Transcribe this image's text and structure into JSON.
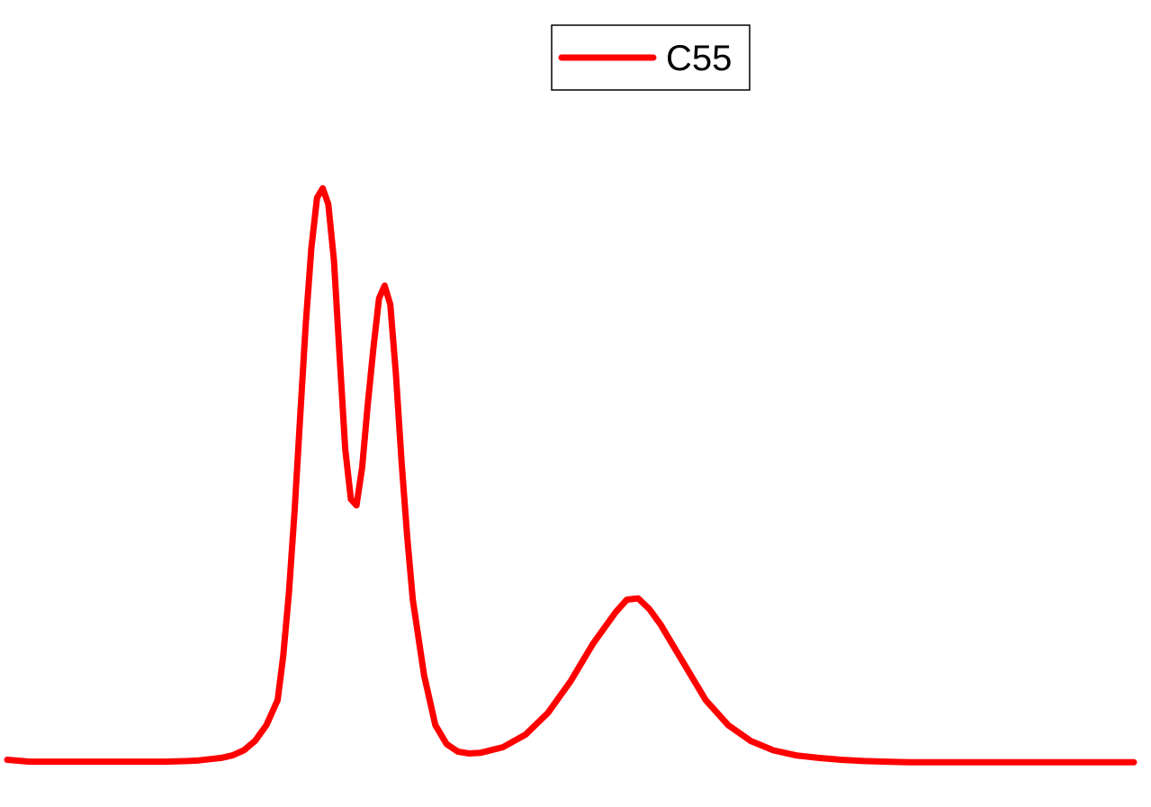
{
  "chart_data": {
    "type": "line",
    "title": "",
    "xlabel": "",
    "ylabel": "",
    "axes_visible": false,
    "grid": false,
    "legend_position": "top-center",
    "xlim": [
      0,
      100
    ],
    "ylim": [
      0,
      1
    ],
    "x": [
      0,
      2,
      4,
      6,
      8,
      10,
      12,
      14,
      16,
      17,
      18,
      19,
      20,
      21,
      22,
      23,
      24,
      24.5,
      25,
      25.5,
      26,
      26.5,
      27,
      27.5,
      28,
      28.5,
      29,
      29.5,
      30,
      30.5,
      31,
      31.5,
      32,
      32.5,
      33,
      33.5,
      34,
      34.5,
      35,
      35.5,
      36,
      37,
      38,
      39,
      40,
      41,
      42,
      44,
      46,
      48,
      50,
      52,
      54,
      55,
      56,
      57,
      58,
      59,
      60,
      61,
      62,
      64,
      66,
      68,
      70,
      72,
      74,
      76,
      78,
      80,
      84,
      88,
      92,
      96,
      100
    ],
    "series": [
      {
        "name": "C55",
        "color": "#ff0000",
        "values": [
          0.005,
          0.002,
          0.002,
          0.002,
          0.002,
          0.002,
          0.002,
          0.002,
          0.003,
          0.004,
          0.006,
          0.008,
          0.012,
          0.02,
          0.035,
          0.06,
          0.1,
          0.17,
          0.27,
          0.4,
          0.55,
          0.7,
          0.82,
          0.9,
          0.915,
          0.89,
          0.8,
          0.65,
          0.5,
          0.42,
          0.41,
          0.47,
          0.57,
          0.66,
          0.74,
          0.76,
          0.73,
          0.62,
          0.48,
          0.36,
          0.26,
          0.14,
          0.06,
          0.03,
          0.018,
          0.015,
          0.016,
          0.025,
          0.045,
          0.08,
          0.13,
          0.19,
          0.24,
          0.26,
          0.262,
          0.245,
          0.22,
          0.19,
          0.16,
          0.13,
          0.1,
          0.06,
          0.035,
          0.02,
          0.012,
          0.008,
          0.005,
          0.003,
          0.002,
          0.001,
          0.001,
          0.001,
          0.001,
          0.001,
          0.001
        ]
      }
    ]
  }
}
